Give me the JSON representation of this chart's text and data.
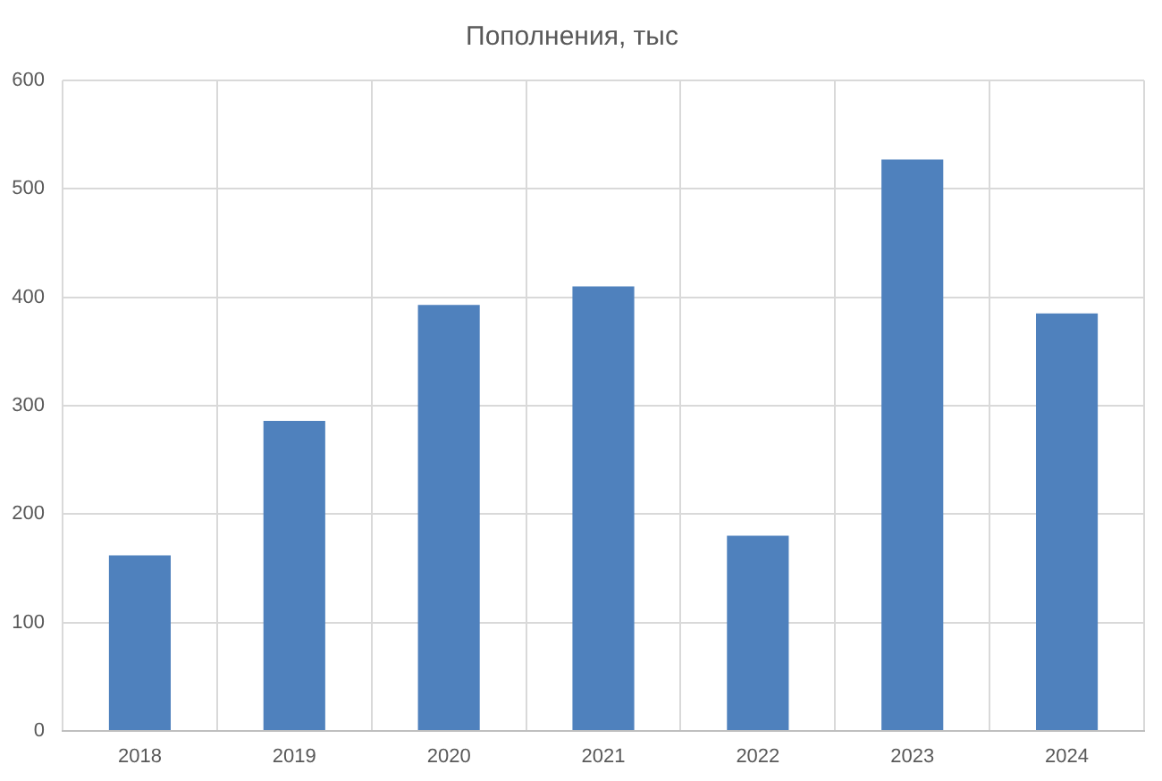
{
  "chart_data": {
    "type": "bar",
    "title": "Пополнения, тыс",
    "categories": [
      "2018",
      "2019",
      "2020",
      "2021",
      "2022",
      "2023",
      "2024"
    ],
    "values": [
      162,
      286,
      393,
      410,
      180,
      527,
      385
    ],
    "color": "#4f81bd",
    "ylim": [
      0,
      600
    ],
    "yticks": [
      0,
      100,
      200,
      300,
      400,
      500,
      600
    ],
    "grid": true,
    "legend": false
  }
}
